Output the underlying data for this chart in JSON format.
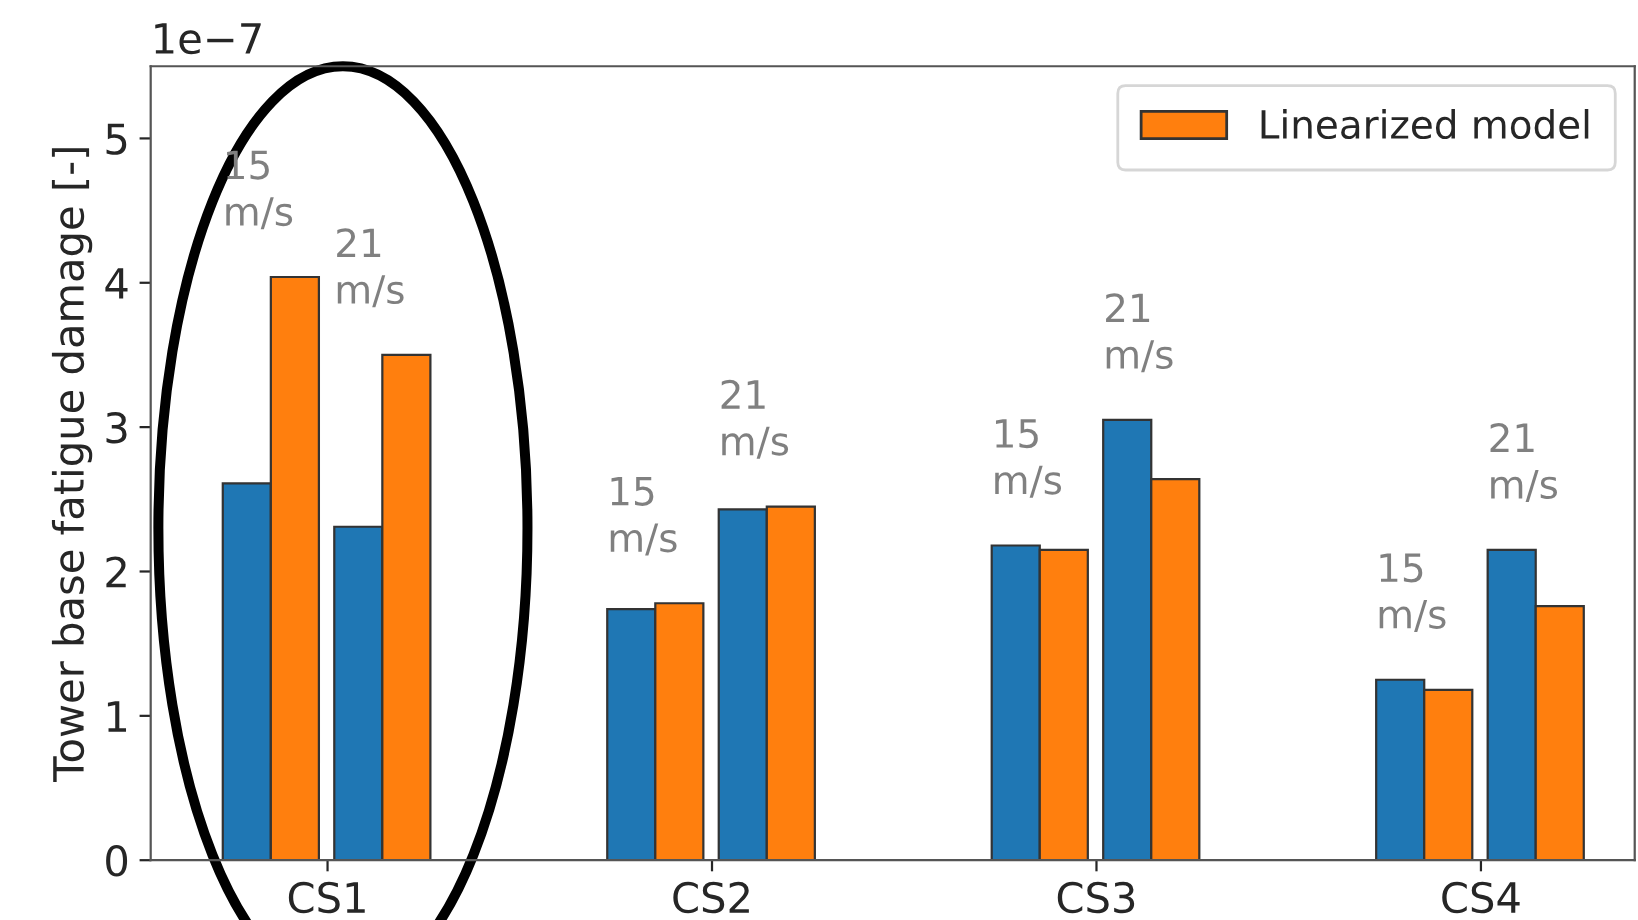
{
  "chart_data": {
    "type": "bar",
    "ylabel": "Tower base fatigue damage [-]",
    "categories": [
      "CS1",
      "CS2",
      "CS3",
      "CS4"
    ],
    "series": [
      {
        "color": "#1f77b4",
        "values": [
          2.61,
          1.74,
          2.18,
          1.25
        ]
      },
      {
        "name": "Linearized model",
        "color": "#ff7f0e",
        "values": [
          4.04,
          1.78,
          2.15,
          1.18
        ]
      },
      {
        "color": "#1f77b4",
        "values": [
          2.31,
          2.43,
          3.05,
          2.15
        ]
      },
      {
        "color": "#ff7f0e",
        "values": [
          3.5,
          2.45,
          2.64,
          1.76
        ]
      }
    ],
    "ylim": [
      0,
      5.5
    ],
    "yticks": [
      0,
      1,
      2,
      3,
      4,
      5
    ],
    "grid": false,
    "legend": "top right",
    "annotations": [
      "1e−7",
      "15\nm/s",
      "21\nm/s",
      "15\nm/s",
      "21\nm/s",
      "15\nm/s",
      "21\nm/s",
      "15\nm/s",
      "21\nm/s"
    ]
  }
}
